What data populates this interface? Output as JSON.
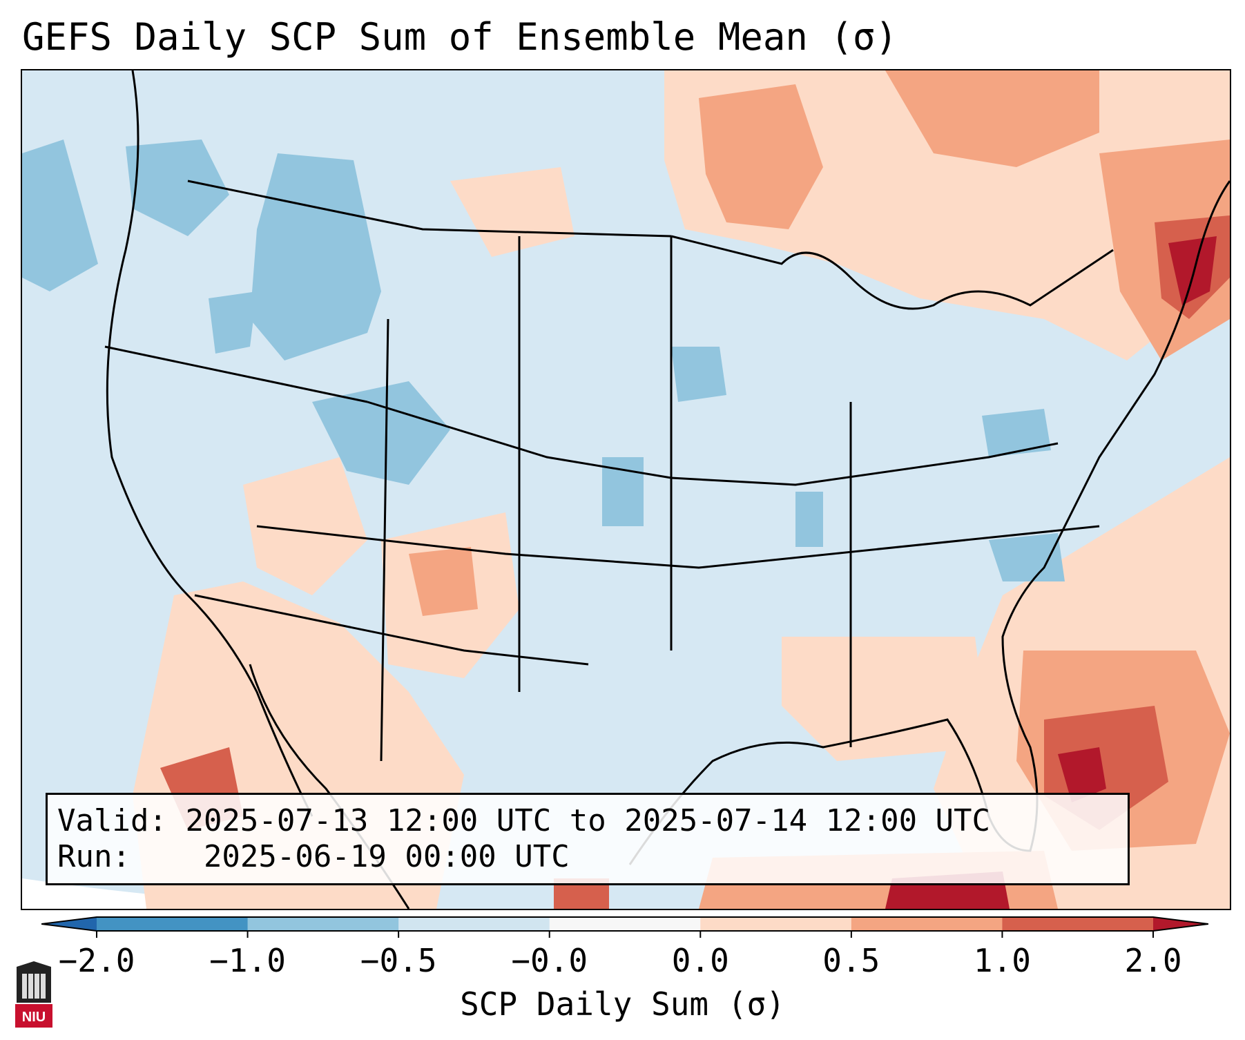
{
  "title": "GEFS Daily SCP Sum of Ensemble Mean (σ)",
  "info": {
    "valid_label": "Valid:",
    "valid_value": "2025-07-13 12:00 UTC to 2025-07-14 12:00 UTC",
    "run_label": "Run:",
    "run_value": "2025-06-19 00:00 UTC"
  },
  "colorbar": {
    "label": "SCP Daily Sum (σ)",
    "ticks": [
      "−2.0",
      "−1.0",
      "−0.5",
      "−0.0",
      "0.0",
      "0.5",
      "1.0",
      "2.0"
    ],
    "bins": [
      {
        "range": "< -2.0",
        "color": "#2166ac"
      },
      {
        "range": "-2.0 to -1.0",
        "color": "#4393c3"
      },
      {
        "range": "-1.0 to -0.5",
        "color": "#92c5de"
      },
      {
        "range": "-0.5 to -0.0",
        "color": "#d1e5f0"
      },
      {
        "range": "-0.0 to 0.0",
        "color": "#f7f7f7"
      },
      {
        "range": "0.0 to 0.5",
        "color": "#fddbc7"
      },
      {
        "range": "0.5 to 1.0",
        "color": "#f4a582"
      },
      {
        "range": "1.0 to 2.0",
        "color": "#d6604d"
      },
      {
        "range": "> 2.0",
        "color": "#b2182b"
      }
    ]
  },
  "logo": {
    "text": "NIU"
  },
  "map": {
    "region": "Contiguous United States",
    "anomaly_areas": [
      {
        "area": "Northeast / New England",
        "level": "1.0 to 2.0"
      },
      {
        "area": "Florida peninsula and adjacent Atlantic",
        "level": "1.0 to 2.0"
      },
      {
        "area": "Upper Midwest / Great Lakes / Canada border",
        "level": "0.5 to 1.0"
      },
      {
        "area": "Gulf of California / Baja",
        "level": "0.5 to 1.0"
      },
      {
        "area": "Northern Rockies / Idaho",
        "level": "-1.0 to -0.5"
      },
      {
        "area": "Central Plains / Kansas",
        "level": "-1.0 to -0.5"
      }
    ]
  }
}
